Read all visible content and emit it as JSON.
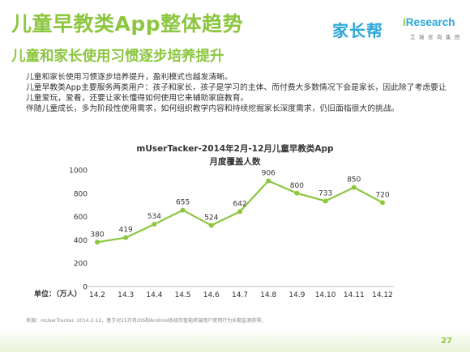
{
  "header": {
    "title": "儿童早教类App整体趋势",
    "subtitle": "儿童和家长使用习惯逐步培养提升"
  },
  "logos": {
    "jiazhangbang": "家长帮",
    "iresearch_i": "i",
    "iresearch_rest": "Research",
    "iresearch_cn": "艾 瑞 咨 询 集 团"
  },
  "description": [
    "儿童和家长使用习惯逐步培养提升，盈利模式也越发清晰。",
    "儿童早教类App主要服务两类用户：孩子和家长，孩子是学习的主体、而付费大多数情况下会是家长，因此除了考虑要让",
    "儿童爱玩，爱看，还要让家长懂得如何使用它来辅助家庭教育。",
    "伴随儿童成长，多为阶段性使用需求，如何组织教学内容和持续挖掘家长深度需求，仍旧面临很大的挑战。"
  ],
  "chart_data": {
    "type": "line",
    "title": "mUserTacker-2014年2月-12月儿童早教类App",
    "subtitle": "月度覆盖人数",
    "ylabel": "单位：（万人）",
    "categories": [
      "14.2",
      "14.3",
      "14.4",
      "14.5",
      "14.6",
      "14.7",
      "14.8",
      "14.9",
      "14.10",
      "14.11",
      "14.12"
    ],
    "values": [
      380,
      419,
      534,
      655,
      524,
      642,
      906,
      800,
      733,
      850,
      720
    ],
    "ylim": [
      0,
      1000
    ],
    "yticks": [
      0,
      200,
      400,
      600,
      800,
      1000
    ],
    "grid": false,
    "line_color": "#8cc63f"
  },
  "footer": {
    "source": "来源：mUserTracker. 2014.2-12，基于对15万名iOS和Android系统的智能终端用户使用行为长期监测获得。",
    "page_number": "27"
  }
}
